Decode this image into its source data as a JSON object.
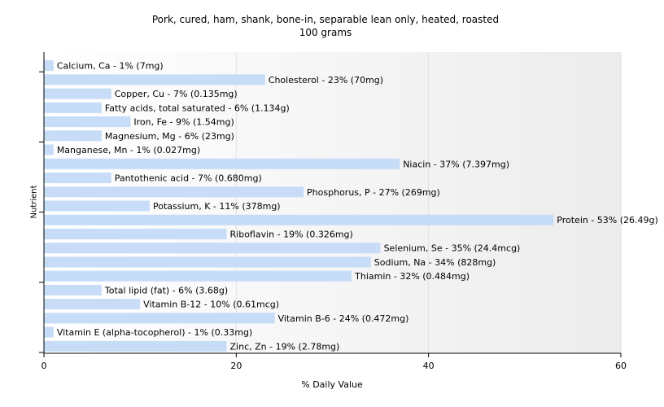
{
  "chart_data": {
    "type": "bar",
    "orientation": "horizontal",
    "title": "Pork, cured, ham, shank, bone-in, separable lean only, heated, roasted",
    "subtitle": "100 grams",
    "xlabel": "% Daily Value",
    "ylabel": "Nutrient",
    "xlim": [
      0,
      60
    ],
    "x_ticks": [
      "0",
      "20",
      "40",
      "60"
    ],
    "grid": "vertical",
    "bar_color": "#c6dcf7",
    "categories": [
      "Calcium, Ca",
      "Cholesterol",
      "Copper, Cu",
      "Fatty acids, total saturated",
      "Iron, Fe",
      "Magnesium, Mg",
      "Manganese, Mn",
      "Niacin",
      "Pantothenic acid",
      "Phosphorus, P",
      "Potassium, K",
      "Protein",
      "Riboflavin",
      "Selenium, Se",
      "Sodium, Na",
      "Thiamin",
      "Total lipid (fat)",
      "Vitamin B-12",
      "Vitamin B-6",
      "Vitamin E (alpha-tocopherol)",
      "Zinc, Zn"
    ],
    "values": [
      1,
      23,
      7,
      6,
      9,
      6,
      1,
      37,
      7,
      27,
      11,
      53,
      19,
      35,
      34,
      32,
      6,
      10,
      24,
      1,
      19
    ],
    "labels": [
      "Calcium, Ca - 1% (7mg)",
      "Cholesterol - 23% (70mg)",
      "Copper, Cu - 7% (0.135mg)",
      "Fatty acids, total saturated - 6% (1.134g)",
      "Iron, Fe - 9% (1.54mg)",
      "Magnesium, Mg - 6% (23mg)",
      "Manganese, Mn - 1% (0.027mg)",
      "Niacin - 37% (7.397mg)",
      "Pantothenic acid - 7% (0.680mg)",
      "Phosphorus, P - 27% (269mg)",
      "Potassium, K - 11% (378mg)",
      "Protein - 53% (26.49g)",
      "Riboflavin - 19% (0.326mg)",
      "Selenium, Se - 35% (24.4mcg)",
      "Sodium, Na - 34% (828mg)",
      "Thiamin - 32% (0.484mg)",
      "Total lipid (fat) - 6% (3.68g)",
      "Vitamin B-12 - 10% (0.61mcg)",
      "Vitamin B-6 - 24% (0.472mg)",
      "Vitamin E (alpha-tocopherol) - 1% (0.33mg)",
      "Zinc, Zn - 19% (2.78mg)"
    ]
  }
}
